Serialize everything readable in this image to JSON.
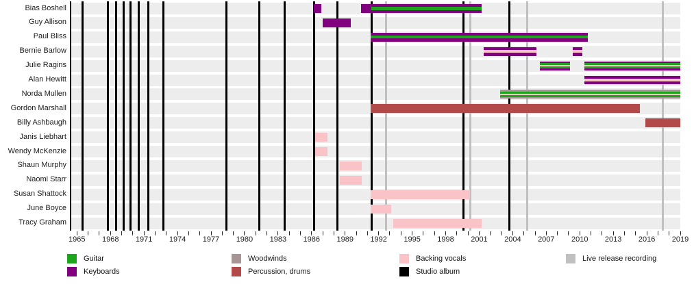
{
  "colors": {
    "guitar": "#1ea51e",
    "keyboards": "#800080",
    "woodwinds": "#a79595",
    "percussion": "#b34a4a",
    "backing_vocals": "#f9c3c8",
    "studio_album": "#000000",
    "live_release": "#c0c0c0",
    "row_band": "#ededed"
  },
  "legend": {
    "items": [
      {
        "label": "Guitar",
        "color_key": "guitar"
      },
      {
        "label": "Keyboards",
        "color_key": "keyboards"
      },
      {
        "label": "Woodwinds",
        "color_key": "woodwinds"
      },
      {
        "label": "Percussion, drums",
        "color_key": "percussion"
      },
      {
        "label": "Backing vocals",
        "color_key": "backing_vocals"
      },
      {
        "label": "Studio album",
        "color_key": "studio_album"
      },
      {
        "label": "Live release recording",
        "color_key": "live_release"
      }
    ]
  },
  "chart_data": {
    "type": "timeline",
    "title": "",
    "x_axis": {
      "start_year": 1965,
      "end_year": 2019,
      "tick_interval_years": 1,
      "label_interval_years": 3,
      "labels": [
        "1965",
        "1968",
        "1971",
        "1974",
        "1977",
        "1980",
        "1983",
        "1986",
        "1989",
        "1992",
        "1995",
        "1998",
        "2001",
        "2004",
        "2007",
        "2010",
        "2013",
        "2016",
        "2019"
      ]
    },
    "event_lines": {
      "studio_albums_years": [
        1965.5,
        1967.75,
        1968.5,
        1969.2,
        1969.8,
        1970.5,
        1971.4,
        1972.75,
        1978.35,
        1981.3,
        1983.6,
        1986.2,
        1988.3,
        1991.35,
        1999.6,
        2003.7
      ],
      "live_release_years": [
        1992.65,
        2000.2,
        2005.3,
        2017.45
      ]
    },
    "members": [
      {
        "name": "Bias Boshell",
        "roles": [
          "Keyboards",
          "Guitar"
        ],
        "segments": [
          {
            "start": 1986.2,
            "end": 1986.9,
            "stripes": [
              "keyboards"
            ]
          },
          {
            "start": 1990.4,
            "end": 1991.35,
            "stripes": [
              "keyboards"
            ]
          },
          {
            "start": 1991.35,
            "end": 2001.2,
            "stripes": [
              "keyboards",
              "guitar",
              "keyboards"
            ]
          }
        ]
      },
      {
        "name": "Guy Allison",
        "roles": [
          "Keyboards"
        ],
        "segments": [
          {
            "start": 1987.0,
            "end": 1989.5,
            "stripes": [
              "keyboards"
            ]
          }
        ]
      },
      {
        "name": "Paul Bliss",
        "roles": [
          "Keyboards",
          "Guitar"
        ],
        "segments": [
          {
            "start": 1991.3,
            "end": 2010.7,
            "stripes": [
              "keyboards",
              "guitar",
              "keyboards"
            ]
          }
        ]
      },
      {
        "name": "Bernie Barlow",
        "roles": [
          "Keyboards",
          "Backing vocals"
        ],
        "segments": [
          {
            "start": 2001.4,
            "end": 2006.1,
            "stripes": [
              "keyboards",
              "backing_vocals",
              "keyboards"
            ]
          },
          {
            "start": 2009.4,
            "end": 2010.2,
            "stripes": [
              "keyboards",
              "backing_vocals",
              "keyboards"
            ]
          }
        ]
      },
      {
        "name": "Julie Ragins",
        "roles": [
          "Keyboards",
          "Guitar",
          "Backing vocals"
        ],
        "segments": [
          {
            "start": 2006.4,
            "end": 2009.1,
            "stripes": [
              "keyboards",
              "guitar",
              "backing_vocals",
              "guitar",
              "keyboards"
            ]
          },
          {
            "start": 2010.4,
            "end": 2019.0,
            "stripes": [
              "keyboards",
              "guitar",
              "backing_vocals",
              "guitar",
              "keyboards"
            ]
          }
        ]
      },
      {
        "name": "Alan Hewitt",
        "roles": [
          "Keyboards",
          "Backing vocals"
        ],
        "segments": [
          {
            "start": 2010.4,
            "end": 2019.0,
            "stripes": [
              "keyboards",
              "backing_vocals",
              "keyboards"
            ]
          }
        ]
      },
      {
        "name": "Norda Mullen",
        "roles": [
          "Woodwinds",
          "Guitar",
          "Backing vocals"
        ],
        "segments": [
          {
            "start": 2002.9,
            "end": 2019.0,
            "stripes": [
              "woodwinds",
              "guitar",
              "backing_vocals",
              "guitar",
              "woodwinds"
            ]
          }
        ]
      },
      {
        "name": "Gordon Marshall",
        "roles": [
          "Percussion, drums"
        ],
        "segments": [
          {
            "start": 1991.3,
            "end": 2015.4,
            "stripes": [
              "percussion"
            ]
          }
        ]
      },
      {
        "name": "Billy Ashbaugh",
        "roles": [
          "Percussion, drums"
        ],
        "segments": [
          {
            "start": 2015.9,
            "end": 2019.0,
            "stripes": [
              "percussion"
            ]
          }
        ]
      },
      {
        "name": "Janis Liebhart",
        "roles": [
          "Backing vocals"
        ],
        "segments": [
          {
            "start": 1986.3,
            "end": 1987.4,
            "stripes": [
              "backing_vocals"
            ]
          }
        ]
      },
      {
        "name": "Wendy McKenzie",
        "roles": [
          "Backing vocals"
        ],
        "segments": [
          {
            "start": 1986.3,
            "end": 1987.4,
            "stripes": [
              "backing_vocals"
            ]
          }
        ]
      },
      {
        "name": "Shaun Murphy",
        "roles": [
          "Backing vocals"
        ],
        "segments": [
          {
            "start": 1988.5,
            "end": 1990.5,
            "stripes": [
              "backing_vocals"
            ]
          }
        ]
      },
      {
        "name": "Naomi Starr",
        "roles": [
          "Backing vocals"
        ],
        "segments": [
          {
            "start": 1988.5,
            "end": 1990.5,
            "stripes": [
              "backing_vocals"
            ]
          }
        ]
      },
      {
        "name": "Susan Shattock",
        "roles": [
          "Backing vocals"
        ],
        "segments": [
          {
            "start": 1991.3,
            "end": 2000.2,
            "stripes": [
              "backing_vocals"
            ]
          }
        ]
      },
      {
        "name": "June Boyce",
        "roles": [
          "Backing vocals"
        ],
        "segments": [
          {
            "start": 1991.3,
            "end": 1993.1,
            "stripes": [
              "backing_vocals"
            ]
          }
        ]
      },
      {
        "name": "Tracy Graham",
        "roles": [
          "Backing vocals"
        ],
        "segments": [
          {
            "start": 1993.3,
            "end": 2001.2,
            "stripes": [
              "backing_vocals"
            ]
          }
        ]
      }
    ]
  }
}
